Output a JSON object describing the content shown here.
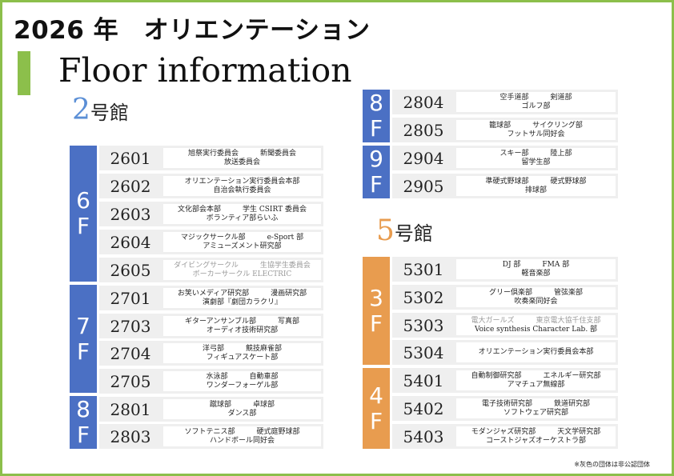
{
  "title": "2026 年　オリエンテーション",
  "subtitle": "Floor information",
  "building2": {
    "num": "2",
    "suffix": "号館"
  },
  "building5": {
    "num": "5",
    "suffix": "号館"
  },
  "tabs": {
    "b2_6": [
      "6",
      "F"
    ],
    "b2_7": [
      "7",
      "F"
    ],
    "b2_8": [
      "8",
      "F"
    ],
    "b2_8b": [
      "8",
      "F"
    ],
    "b2_9": [
      "9",
      "F"
    ],
    "b5_3": [
      "3",
      "F"
    ],
    "b5_4": [
      "4",
      "F"
    ]
  },
  "colors": {
    "green": "#8cbf4b",
    "blue": "#4b70c4",
    "orange": "#e89c4f",
    "gray_text": "#9a9a9a"
  },
  "rooms": [
    {
      "room": "2601",
      "line1": "旭祭実行委員会　　　新聞委員会",
      "line2": "放送委員会",
      "gray": false
    },
    {
      "room": "2602",
      "line1": "オリエンテーション実行委員会本部",
      "line2": "自治会執行委員会",
      "gray": false
    },
    {
      "room": "2603",
      "line1": "文化部会本部　　　学生 CSIRT 委員会",
      "line2": "ボランティア部らいふ",
      "gray": false
    },
    {
      "room": "2604",
      "line1": "マジックサークル部　　　e-Sport 部",
      "line2": "アミューズメント研究部",
      "gray": false
    },
    {
      "room": "2605",
      "line1": "ダイビングサークル　　　生協学生委員会",
      "line2": "ボーカーサークル ELECTRIC",
      "gray": true
    },
    {
      "room": "2701",
      "line1": "お笑いメディア研究部　　　漫画研究部",
      "line2": "演劇部『劇団カラクリ』",
      "gray": false
    },
    {
      "room": "2703",
      "line1": "ギターアンサンブル部　　　写真部",
      "line2": "オーディオ技術研究部",
      "gray": false
    },
    {
      "room": "2704",
      "line1": "洋弓部　　　競技麻雀部",
      "line2": "フィギュアスケート部",
      "gray": false
    },
    {
      "room": "2705",
      "line1": "水泳部　　　自動車部",
      "line2": "ワンダーフォーゲル部",
      "gray": false
    },
    {
      "room": "2801",
      "line1": "蹴球部　　　卓球部",
      "line2": "ダンス部",
      "gray": false
    },
    {
      "room": "2803",
      "line1": "ソフトテニス部　　　硬式庭野球部",
      "line2": "ハンドボール同好会",
      "gray": false
    },
    {
      "room": "2804",
      "line1": "空手道部　　　剣道部",
      "line2": "ゴルフ部",
      "gray": false
    },
    {
      "room": "2805",
      "line1": "籠球部　　　サイクリング部",
      "line2": "フットサル同好会",
      "gray": false
    },
    {
      "room": "2904",
      "line1": "スキー部　　　陸上部",
      "line2": "留学生部",
      "gray": false
    },
    {
      "room": "2905",
      "line1": "準硬式野球部　　　硬式野球部",
      "line2": "排球部",
      "gray": false
    },
    {
      "room": "5301",
      "line1": "DJ 部　　　FMA 部",
      "line2": "軽音楽部",
      "gray": false
    },
    {
      "room": "5302",
      "line1": "グリー倶楽部　　　管弦楽部",
      "line2": "吹奏楽同好会",
      "gray": false
    },
    {
      "room": "5303",
      "line1": "電大ガールズ　　　東京電大協千住支部",
      "line2": "Voice synthesis Character Lab. 部",
      "gray": true,
      "gray_line2": false
    },
    {
      "room": "5304",
      "line1": "オリエンテーション実行委員会本部",
      "line2": "",
      "gray": false
    },
    {
      "room": "5401",
      "line1": "自動制御研究部　　　エネルギー研究部",
      "line2": "アマチュア無線部",
      "gray": false
    },
    {
      "room": "5402",
      "line1": "電子技術研究部　　　鉄道研究部",
      "line2": "ソフトウェア研究部",
      "gray": false
    },
    {
      "room": "5403",
      "line1": "モダンジャズ研究部　　　天文学研究部",
      "line2": "コーストジャズオーケストラ部",
      "gray": false
    }
  ],
  "footnote": "※灰色の団体は非公認団体"
}
